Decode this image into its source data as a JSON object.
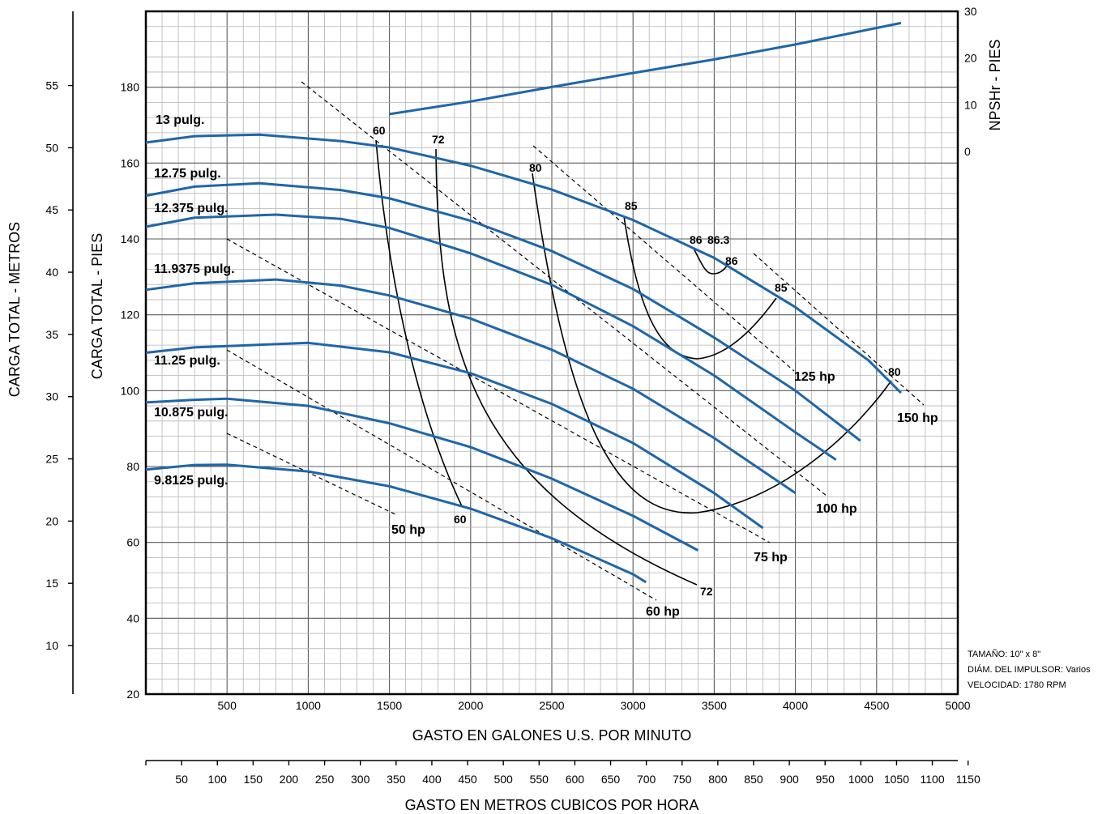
{
  "chart_data": {
    "type": "line",
    "xlabel": "GASTO EN GALONES U.S. POR MINUTO",
    "x2label": "GASTO EN METROS CUBICOS POR HORA",
    "ylabel": "CARGA TOTAL - PIES",
    "y2label": "CARGA TOTAL - METROS",
    "y3label": "NPSHr - PIES",
    "xlim": [
      0,
      5000
    ],
    "ylim": [
      20,
      200
    ],
    "grid": true,
    "x_ticks": [
      "500",
      "1000",
      "1500",
      "2000",
      "2500",
      "3000",
      "3500",
      "4000",
      "4500",
      "5000"
    ],
    "y_ticks": [
      "20",
      "40",
      "60",
      "80",
      "100",
      "120",
      "140",
      "160",
      "180"
    ],
    "y2_ticks": [
      "10",
      "15",
      "20",
      "25",
      "30",
      "35",
      "40",
      "45",
      "50",
      "55"
    ],
    "npsh_ticks": [
      "0",
      "10",
      "20",
      "30"
    ],
    "x2_ticks": [
      "50",
      "100",
      "150",
      "200",
      "250",
      "300",
      "350",
      "400",
      "450",
      "500",
      "550",
      "600",
      "650",
      "700",
      "750",
      "800",
      "850",
      "900",
      "950",
      "1000",
      "1050",
      "1100",
      "1150"
    ],
    "series": [
      {
        "name": "13 pulg.",
        "x": [
          0,
          300,
          700,
          1200,
          1500,
          2000,
          2500,
          3000,
          3500,
          4000,
          4450,
          4650
        ],
        "y": [
          165.4,
          167.1,
          167.5,
          165.8,
          164.1,
          159.3,
          153.0,
          145.0,
          135.0,
          122.0,
          108.0,
          99.4
        ]
      },
      {
        "name": "12.75 pulg.",
        "x": [
          0,
          300,
          700,
          1200,
          1500,
          2000,
          2500,
          3000,
          3500,
          4000,
          4400
        ],
        "y": [
          151.4,
          153.8,
          154.7,
          152.9,
          150.7,
          144.8,
          136.8,
          126.8,
          114.0,
          100.0,
          86.8
        ]
      },
      {
        "name": "12.375 pulg.",
        "x": [
          0,
          300,
          800,
          1200,
          1500,
          2000,
          2500,
          3000,
          3500,
          4000,
          4250
        ],
        "y": [
          143.2,
          145.6,
          146.4,
          145.3,
          142.9,
          136.2,
          127.9,
          117.0,
          104.0,
          89.0,
          81.8
        ]
      },
      {
        "name": "11.9375 pulg.",
        "x": [
          0,
          300,
          800,
          1200,
          1500,
          2000,
          2500,
          3000,
          3500,
          4000
        ],
        "y": [
          126.6,
          128.3,
          129.3,
          127.7,
          125.1,
          119.0,
          110.8,
          100.5,
          87.5,
          73.0
        ]
      },
      {
        "name": "11.25 pulg.",
        "x": [
          0,
          300,
          1000,
          1500,
          2000,
          2500,
          3000,
          3500,
          3800
        ],
        "y": [
          110.0,
          111.4,
          112.6,
          110.1,
          104.6,
          96.5,
          86.2,
          73.0,
          63.8
        ]
      },
      {
        "name": "10.875 pulg.",
        "x": [
          0,
          300,
          500,
          1000,
          1500,
          2000,
          2500,
          3000,
          3400
        ],
        "y": [
          96.9,
          97.6,
          97.9,
          96.0,
          91.4,
          85.1,
          76.8,
          67.0,
          57.9
        ]
      },
      {
        "name": "9.8125 pulg.",
        "x": [
          0,
          300,
          500,
          1000,
          1500,
          2000,
          2500,
          3000,
          3080
        ],
        "y": [
          79.2,
          80.4,
          80.5,
          78.7,
          74.8,
          68.9,
          61.1,
          51.6,
          49.5
        ]
      }
    ],
    "npshr": {
      "x": [
        1500,
        2000,
        2500,
        3000,
        3500,
        4000,
        4650
      ],
      "y": [
        8.0,
        10.7,
        13.8,
        16.8,
        19.7,
        22.9,
        27.5
      ]
    },
    "efficiency_lines": [
      "60",
      "60",
      "72",
      "72",
      "80",
      "80",
      "85",
      "85",
      "86",
      "86",
      "86.3"
    ],
    "hp_lines": [
      "50 hp",
      "60 hp",
      "75 hp",
      "100 hp",
      "125 hp",
      "150 hp"
    ],
    "notes": [
      "TAMAÑO: 10\" x 8\"",
      "DIÁM. DEL IMPULSOR: Varios",
      "VELOCIDAD: 1780 RPM"
    ]
  }
}
